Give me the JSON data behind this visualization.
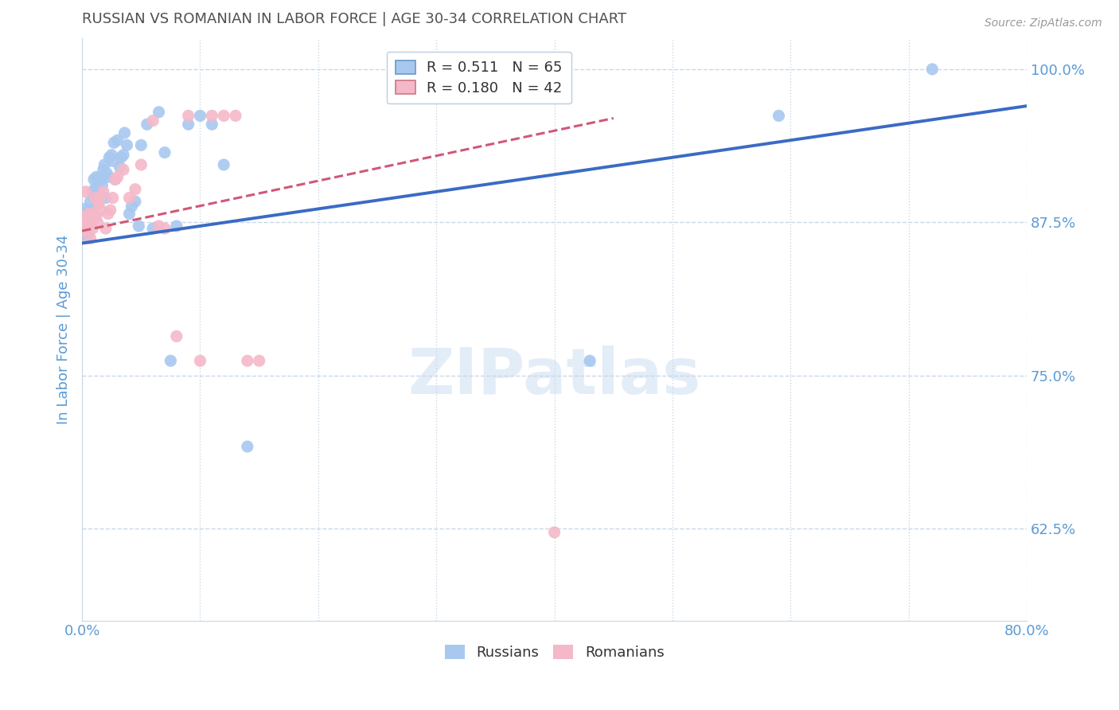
{
  "title": "RUSSIAN VS ROMANIAN IN LABOR FORCE | AGE 30-34 CORRELATION CHART",
  "source": "Source: ZipAtlas.com",
  "ylabel": "In Labor Force | Age 30-34",
  "x_min": 0.0,
  "x_max": 0.8,
  "y_min": 0.55,
  "y_max": 1.025,
  "x_ticks": [
    0.0,
    0.1,
    0.2,
    0.3,
    0.4,
    0.5,
    0.6,
    0.7,
    0.8
  ],
  "x_tick_labels": [
    "0.0%",
    "",
    "",
    "",
    "",
    "",
    "",
    "",
    "80.0%"
  ],
  "y_ticks": [
    0.625,
    0.75,
    0.875,
    1.0
  ],
  "y_tick_labels": [
    "62.5%",
    "75.0%",
    "87.5%",
    "100.0%"
  ],
  "watermark": "ZIPatlas",
  "legend_blue_label": "Russians",
  "legend_pink_label": "Romanians",
  "r_blue": 0.511,
  "n_blue": 65,
  "r_pink": 0.18,
  "n_pink": 42,
  "blue_color": "#A8C8F0",
  "pink_color": "#F5B8C8",
  "blue_line_color": "#3A6BC4",
  "pink_line_color": "#D05878",
  "title_color": "#505050",
  "tick_label_color": "#5B9BD5",
  "grid_color": "#C8D8E8",
  "background_color": "#FFFFFF",
  "russians_x": [
    0.0,
    0.001,
    0.001,
    0.002,
    0.002,
    0.003,
    0.003,
    0.003,
    0.004,
    0.004,
    0.005,
    0.005,
    0.005,
    0.006,
    0.006,
    0.007,
    0.007,
    0.008,
    0.008,
    0.009,
    0.01,
    0.01,
    0.011,
    0.012,
    0.012,
    0.013,
    0.014,
    0.015,
    0.016,
    0.017,
    0.018,
    0.019,
    0.02,
    0.021,
    0.022,
    0.023,
    0.025,
    0.026,
    0.027,
    0.028,
    0.03,
    0.032,
    0.033,
    0.035,
    0.036,
    0.038,
    0.04,
    0.042,
    0.045,
    0.048,
    0.05,
    0.055,
    0.06,
    0.065,
    0.07,
    0.075,
    0.08,
    0.09,
    0.1,
    0.11,
    0.12,
    0.14,
    0.43,
    0.59,
    0.72
  ],
  "russians_y": [
    0.87,
    0.878,
    0.882,
    0.872,
    0.886,
    0.875,
    0.868,
    0.862,
    0.876,
    0.871,
    0.88,
    0.882,
    0.865,
    0.878,
    0.872,
    0.892,
    0.885,
    0.882,
    0.876,
    0.9,
    0.895,
    0.91,
    0.903,
    0.898,
    0.912,
    0.892,
    0.91,
    0.908,
    0.912,
    0.905,
    0.918,
    0.922,
    0.895,
    0.915,
    0.912,
    0.928,
    0.93,
    0.925,
    0.94,
    0.91,
    0.942,
    0.92,
    0.928,
    0.93,
    0.948,
    0.938,
    0.882,
    0.888,
    0.892,
    0.872,
    0.938,
    0.955,
    0.87,
    0.965,
    0.932,
    0.762,
    0.872,
    0.955,
    0.962,
    0.955,
    0.922,
    0.692,
    0.762,
    0.962,
    1.0
  ],
  "romanians_x": [
    0.001,
    0.001,
    0.002,
    0.003,
    0.003,
    0.004,
    0.005,
    0.006,
    0.007,
    0.007,
    0.008,
    0.009,
    0.01,
    0.011,
    0.012,
    0.013,
    0.014,
    0.015,
    0.016,
    0.018,
    0.02,
    0.022,
    0.024,
    0.026,
    0.028,
    0.03,
    0.035,
    0.04,
    0.045,
    0.05,
    0.06,
    0.065,
    0.07,
    0.08,
    0.09,
    0.1,
    0.11,
    0.12,
    0.13,
    0.14,
    0.15,
    0.4
  ],
  "romanians_y": [
    0.868,
    0.875,
    0.878,
    0.88,
    0.9,
    0.875,
    0.87,
    0.882,
    0.862,
    0.878,
    0.875,
    0.87,
    0.882,
    0.895,
    0.88,
    0.875,
    0.89,
    0.895,
    0.885,
    0.9,
    0.87,
    0.882,
    0.885,
    0.895,
    0.91,
    0.912,
    0.918,
    0.895,
    0.902,
    0.922,
    0.958,
    0.872,
    0.87,
    0.782,
    0.962,
    0.762,
    0.962,
    0.962,
    0.962,
    0.762,
    0.762,
    0.622
  ],
  "blue_line_x": [
    0.0,
    0.8
  ],
  "blue_line_y": [
    0.858,
    0.97
  ],
  "pink_line_x": [
    0.0,
    0.45
  ],
  "pink_line_y": [
    0.868,
    0.96
  ]
}
